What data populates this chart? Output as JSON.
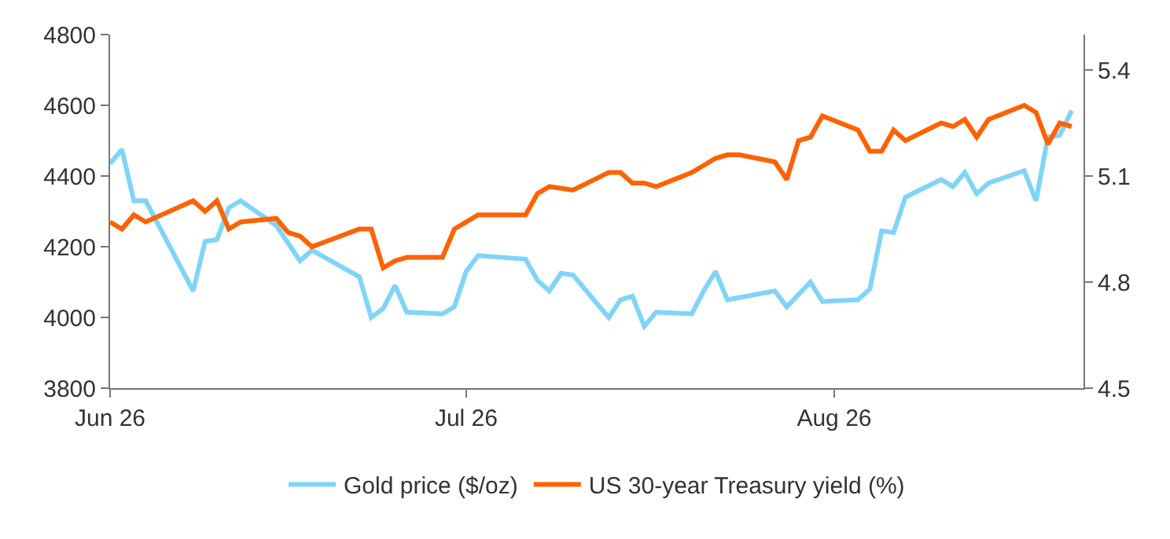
{
  "chart_data": {
    "type": "line",
    "x": [
      "2026-06-01",
      "2026-06-02",
      "2026-06-03",
      "2026-06-04",
      "2026-06-08",
      "2026-06-09",
      "2026-06-10",
      "2026-06-11",
      "2026-06-12",
      "2026-06-15",
      "2026-06-16",
      "2026-06-17",
      "2026-06-18",
      "2026-06-22",
      "2026-06-23",
      "2026-06-24",
      "2026-06-25",
      "2026-06-26",
      "2026-06-29",
      "2026-06-30",
      "2026-07-01",
      "2026-07-02",
      "2026-07-06",
      "2026-07-07",
      "2026-07-08",
      "2026-07-09",
      "2026-07-10",
      "2026-07-13",
      "2026-07-14",
      "2026-07-15",
      "2026-07-16",
      "2026-07-17",
      "2026-07-20",
      "2026-07-21",
      "2026-07-22",
      "2026-07-23",
      "2026-07-24",
      "2026-07-27",
      "2026-07-28",
      "2026-07-29",
      "2026-07-30",
      "2026-07-31",
      "2026-08-03",
      "2026-08-04",
      "2026-08-05",
      "2026-08-06",
      "2026-08-07",
      "2026-08-10",
      "2026-08-11",
      "2026-08-12",
      "2026-08-13",
      "2026-08-14",
      "2026-08-17",
      "2026-08-18",
      "2026-08-19",
      "2026-08-20",
      "2026-08-21"
    ],
    "series": [
      {
        "name": "Gold price ($/oz)",
        "color": "#80d4f8",
        "values": [
          4435,
          4475,
          4330,
          4330,
          4075,
          4215,
          4220,
          4310,
          4330,
          4260,
          null,
          4160,
          4190,
          4115,
          4000,
          4025,
          4090,
          4015,
          4010,
          4030,
          4130,
          4175,
          4165,
          4105,
          4075,
          4125,
          4120,
          4000,
          4050,
          4060,
          3975,
          4015,
          4010,
          4075,
          4130,
          4050,
          null,
          4075,
          4030,
          null,
          4100,
          4045,
          4050,
          4080,
          4245,
          4240,
          4340,
          4390,
          4370,
          4410,
          4350,
          4380,
          4415,
          4330,
          4510,
          4515,
          4585
        ]
      },
      {
        "name": "US 30-year Treasury yield (%)",
        "color": "#ff6200",
        "axis": "y2",
        "values": [
          4.97,
          4.95,
          4.99,
          4.97,
          5.03,
          5.0,
          5.03,
          4.95,
          4.97,
          4.98,
          4.94,
          4.93,
          4.9,
          4.95,
          4.95,
          4.84,
          4.86,
          4.87,
          4.87,
          4.95,
          4.97,
          4.99,
          4.99,
          5.05,
          5.07,
          null,
          5.06,
          5.11,
          5.11,
          5.08,
          5.08,
          5.07,
          5.11,
          5.13,
          5.15,
          5.16,
          5.16,
          5.14,
          5.09,
          5.2,
          5.21,
          5.27,
          5.23,
          5.17,
          5.17,
          5.23,
          5.2,
          5.25,
          5.24,
          5.26,
          5.21,
          5.26,
          5.3,
          5.28,
          5.19,
          5.25,
          5.24
        ]
      }
    ],
    "xlim": [
      "2026-06-01",
      "2026-08-22"
    ],
    "xticks": [
      {
        "value": "2026-06-01",
        "label": "Jun 26"
      },
      {
        "value": "2026-07-01",
        "label": "Jul 26"
      },
      {
        "value": "2026-08-01",
        "label": "Aug 26"
      }
    ],
    "ylim": [
      3800,
      4800
    ],
    "yticks": [
      3800,
      4000,
      4200,
      4400,
      4600,
      4800
    ],
    "y2lim": [
      4.5,
      5.5
    ],
    "y2ticks": [
      4.5,
      4.8,
      5.1,
      5.4
    ],
    "legend": "bottom",
    "grid": false
  }
}
